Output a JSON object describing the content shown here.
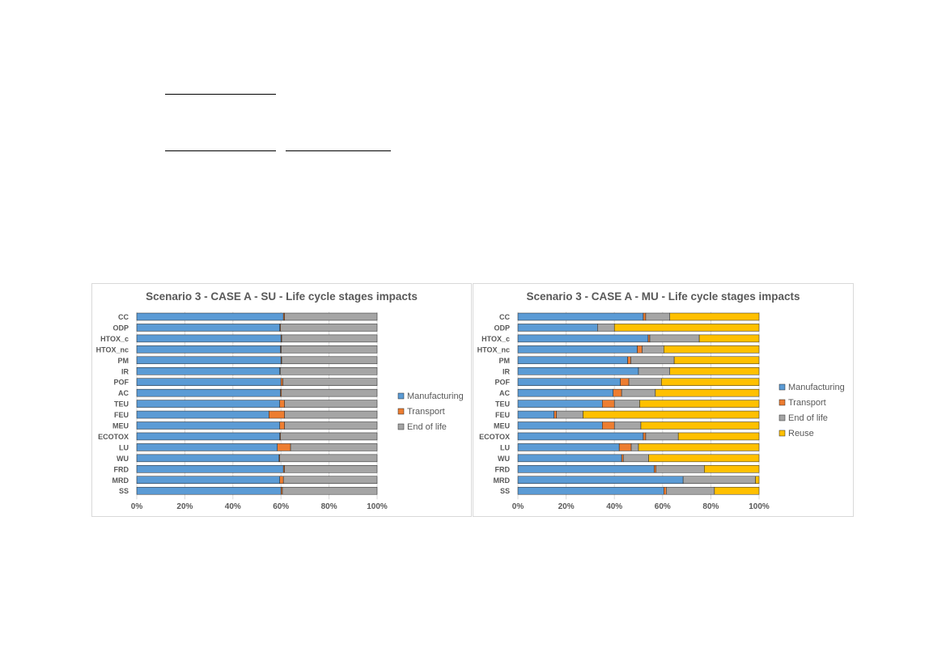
{
  "colors": {
    "Manufacturing": "#5b9bd5",
    "Transport": "#ed7d31",
    "End of life": "#a5a5a5",
    "Reuse": "#ffc000"
  },
  "chart_data": [
    {
      "type": "bar",
      "orientation": "horizontal",
      "stacked": "percent",
      "title": "Scenario 3 - CASE A - SU - Life cycle stages impacts",
      "categories": [
        "CC",
        "ODP",
        "HTOX_c",
        "HTOX_nc",
        "PM",
        "IR",
        "POF",
        "AC",
        "TEU",
        "FEU",
        "MEU",
        "ECOTOX",
        "LU",
        "WU",
        "FRD",
        "MRD",
        "SS"
      ],
      "xticks": [
        "0%",
        "20%",
        "40%",
        "60%",
        "80%",
        "100%"
      ],
      "xlim": [
        0,
        100
      ],
      "legend_position": "right",
      "grid": true,
      "series": [
        {
          "name": "Manufacturing",
          "values": [
            61,
            59.5,
            60,
            59.8,
            60,
            59.5,
            60,
            59.8,
            59.5,
            55,
            59.5,
            59.5,
            58.5,
            59.2,
            61,
            59.5,
            60
          ]
        },
        {
          "name": "Transport",
          "values": [
            0.5,
            0.3,
            0.3,
            0.3,
            0.3,
            0.2,
            0.8,
            0.4,
            2,
            6.5,
            2,
            0.3,
            5.5,
            0.3,
            0.5,
            1.5,
            0.6
          ]
        },
        {
          "name": "End of life",
          "values": [
            38.5,
            40.2,
            39.7,
            39.9,
            39.7,
            40.3,
            39.2,
            39.8,
            38.5,
            38.5,
            38.5,
            40.2,
            36,
            40.5,
            38.5,
            39,
            39.4
          ]
        }
      ]
    },
    {
      "type": "bar",
      "orientation": "horizontal",
      "stacked": "percent",
      "title": "Scenario 3 - CASE A - MU - Life cycle stages impacts",
      "categories": [
        "CC",
        "ODP",
        "HTOX_c",
        "HTOX_nc",
        "PM",
        "IR",
        "POF",
        "AC",
        "TEU",
        "FEU",
        "MEU",
        "ECOTOX",
        "LU",
        "WU",
        "FRD",
        "MRD",
        "SS"
      ],
      "xticks": [
        "0%",
        "20%",
        "40%",
        "60%",
        "80%",
        "100%"
      ],
      "xlim": [
        0,
        100
      ],
      "legend_position": "right",
      "grid": true,
      "series": [
        {
          "name": "Manufacturing",
          "values": [
            52,
            33,
            54,
            49.5,
            45.5,
            50,
            42.5,
            39.5,
            35,
            15,
            35,
            52,
            42,
            43,
            56.5,
            68.5,
            60.5
          ]
        },
        {
          "name": "Transport",
          "values": [
            1,
            0,
            0.7,
            2,
            1.3,
            0,
            3.5,
            3.5,
            5,
            1,
            5,
            1,
            5,
            0.7,
            0.8,
            0,
            1
          ]
        },
        {
          "name": "End of life",
          "values": [
            10,
            7,
            20.5,
            9,
            18,
            13,
            13.5,
            14,
            10.5,
            11,
            11,
            13.5,
            3,
            10.5,
            20,
            30,
            20
          ]
        },
        {
          "name": "Reuse",
          "values": [
            37,
            60,
            24.8,
            39.5,
            35.2,
            37,
            40.5,
            43,
            49.5,
            73,
            49,
            33.5,
            50,
            45.8,
            22.7,
            1.5,
            18.5
          ]
        }
      ]
    }
  ]
}
